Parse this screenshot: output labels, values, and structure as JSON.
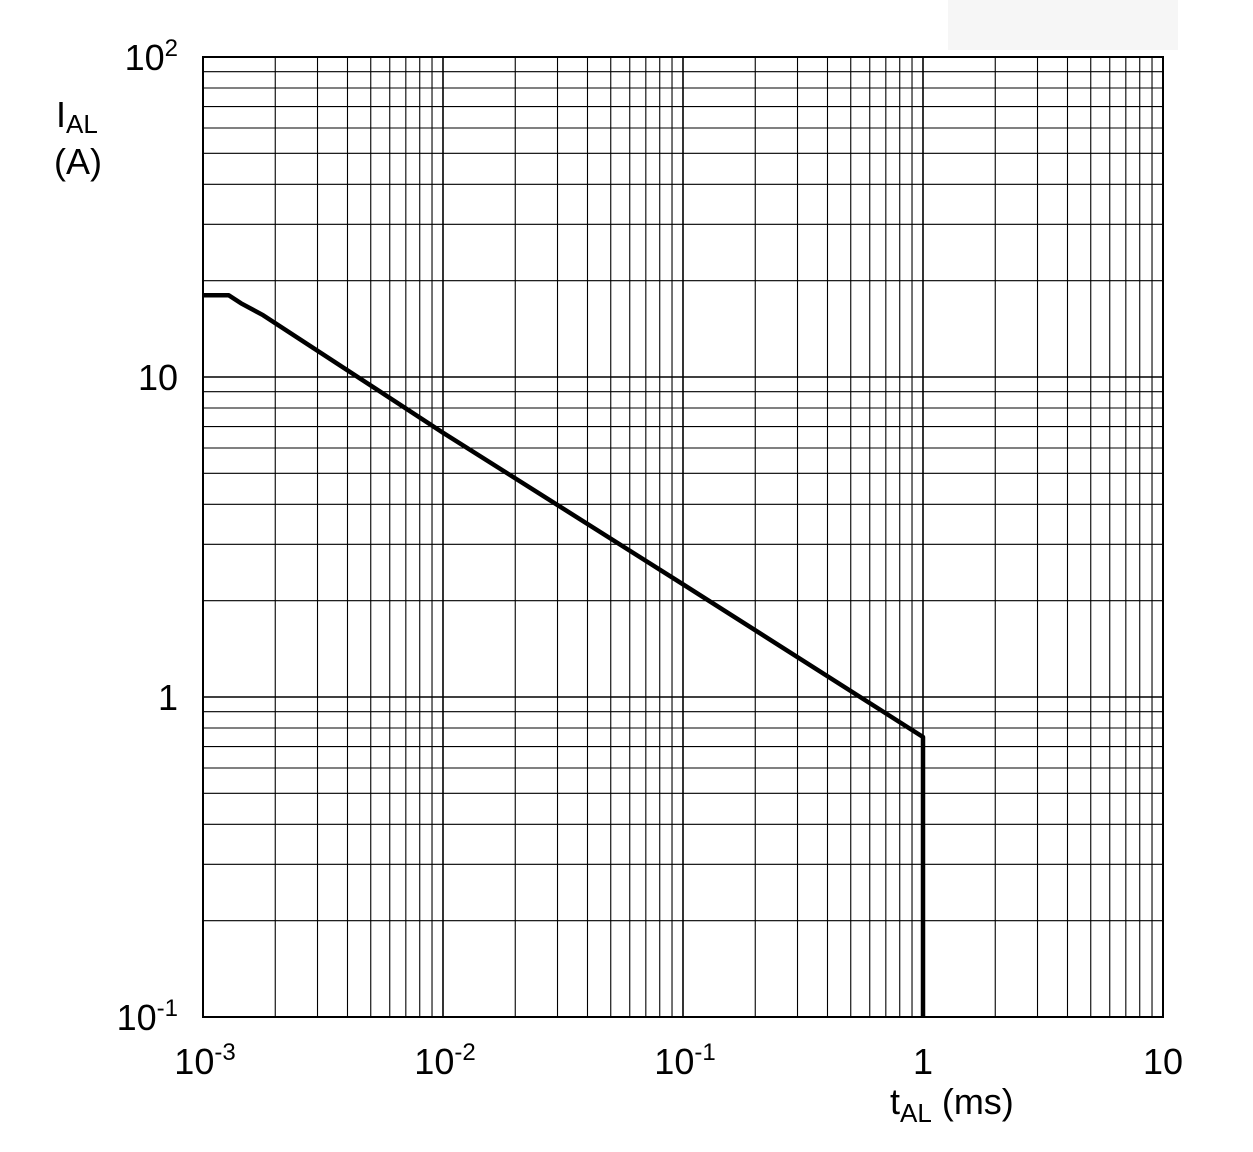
{
  "chart_data": {
    "type": "line",
    "x_scale": "log",
    "y_scale": "log",
    "xlim": [
      0.001,
      10
    ],
    "ylim": [
      0.1,
      100
    ],
    "grid": true,
    "x_ticks": [
      {
        "value": 0.001,
        "base": "10",
        "exp": "-3"
      },
      {
        "value": 0.01,
        "base": "10",
        "exp": "-2"
      },
      {
        "value": 0.1,
        "base": "10",
        "exp": "-1"
      },
      {
        "value": 1,
        "base": "1",
        "exp": ""
      },
      {
        "value": 10,
        "base": "10",
        "exp": ""
      }
    ],
    "y_ticks": [
      {
        "value": 0.1,
        "base": "10",
        "exp": "-1"
      },
      {
        "value": 1,
        "base": "1",
        "exp": ""
      },
      {
        "value": 10,
        "base": "10",
        "exp": ""
      },
      {
        "value": 100,
        "base": "10",
        "exp": "2"
      }
    ],
    "xlabel": {
      "main": "t",
      "sub": "AL",
      "unit": " (ms)"
    },
    "ylabel": {
      "main": "I",
      "sub": "AL",
      "unit": "(A)"
    },
    "series": [
      {
        "color": "#000000",
        "x": [
          0.001,
          0.00128,
          0.00144,
          0.00178,
          0.01,
          0.1,
          1.0,
          1.0
        ],
        "y": [
          18.0,
          18.0,
          17.0,
          15.6,
          6.7,
          2.25,
          0.75,
          0.1
        ]
      }
    ]
  }
}
